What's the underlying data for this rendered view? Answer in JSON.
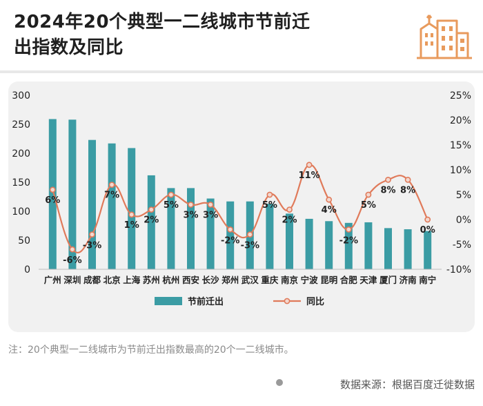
{
  "header": {
    "title_line1": "2024年20个典型一二线城市节前迁",
    "title_line2": "出指数及同比"
  },
  "logo": {
    "icon": "city-buildings-icon",
    "color": "#e89a5c"
  },
  "footer": {
    "note": "注：20个典型一二线城市为节前迁出指数最高的20个一二线城市。",
    "source": "数据来源：根据百度迁徙数据"
  },
  "colors": {
    "bar": "#3b9ca4",
    "line": "#e07a5a",
    "marker_fill": "#f3d8cf"
  },
  "chart_data": {
    "type": "bar",
    "categories": [
      "广州",
      "深圳",
      "成都",
      "北京",
      "上海",
      "苏州",
      "杭州",
      "西安",
      "长沙",
      "郑州",
      "武汉",
      "重庆",
      "南京",
      "宁波",
      "昆明",
      "合肥",
      "天津",
      "厦门",
      "济南",
      "南宁"
    ],
    "series": [
      {
        "name": "节前迁出",
        "type": "bar",
        "axis": "left",
        "values": [
          259,
          258,
          223,
          217,
          209,
          162,
          140,
          140,
          122,
          117,
          117,
          113,
          96,
          87,
          83,
          80,
          81,
          71,
          69,
          66
        ]
      },
      {
        "name": "同比",
        "type": "line",
        "axis": "right",
        "values": [
          6,
          -6,
          -3,
          7,
          1,
          2,
          5,
          3,
          3,
          -2,
          -3,
          5,
          2,
          11,
          4,
          -2,
          5,
          8,
          8,
          0
        ],
        "labels": [
          "6%",
          "-6%",
          "-3%",
          "7%",
          "1%",
          "2%",
          "5%",
          "3%",
          "3%",
          "-2%",
          "-3%",
          "5%",
          "2%",
          "11%",
          "4%",
          "-2%",
          "5%",
          "8%",
          "8%",
          "0%"
        ]
      }
    ],
    "y_left": {
      "min": 0,
      "max": 300,
      "ticks": [
        "0",
        "50",
        "100",
        "150",
        "200",
        "250",
        "300"
      ]
    },
    "y_right": {
      "min": -10,
      "max": 25,
      "ticks": [
        "-10%",
        "-5%",
        "0%",
        "5%",
        "10%",
        "15%",
        "20%",
        "25%"
      ]
    },
    "legend_position": "bottom-center",
    "grid": false
  }
}
